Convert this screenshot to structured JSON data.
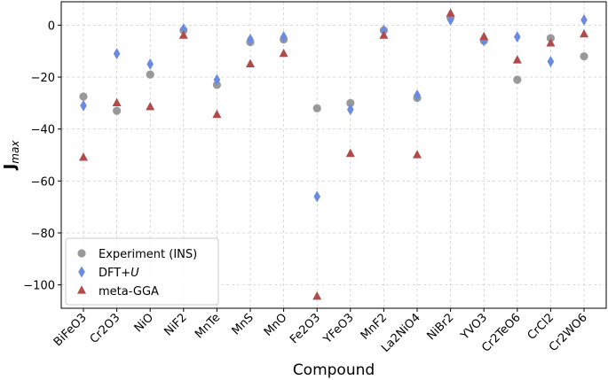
{
  "chart_data": {
    "type": "scatter",
    "title": "",
    "xlabel": "Compound",
    "ylabel_main": "J",
    "ylabel_sub": "max",
    "categories": [
      "BiFeO3",
      "Cr2O3",
      "NiO",
      "NiF2",
      "MnTe",
      "MnS",
      "MnO",
      "Fe2O3",
      "YFeO3",
      "MnF2",
      "La2NiO4",
      "NiBr2",
      "YVO3",
      "Cr2TeO6",
      "CrCl2",
      "Cr2WO6"
    ],
    "ylim": [
      -109,
      9
    ],
    "yticks": [
      0,
      -20,
      -40,
      -60,
      -80,
      -100
    ],
    "ytick_labels": [
      "0",
      "−20",
      "−40",
      "−60",
      "−80",
      "−100"
    ],
    "grid": true,
    "legend_position": "lower-left",
    "series": [
      {
        "name": "Experiment (INS)",
        "name_prefix": "Experiment (INS)",
        "name_italic": "",
        "marker": "circle",
        "color": "#999999",
        "values": [
          -27.5,
          -33,
          -19,
          -2,
          -23,
          -6.5,
          -5.5,
          -32,
          -30,
          -2,
          -28,
          3,
          -6,
          -21,
          -5,
          -12
        ]
      },
      {
        "name": "DFT+U",
        "name_prefix": "DFT+",
        "name_italic": "U",
        "marker": "diamond",
        "color": "#6b8be3",
        "values": [
          -31,
          -11,
          -15,
          -1.5,
          -21,
          -5.5,
          -4.5,
          -66,
          -32.5,
          -2,
          -27,
          2,
          -6,
          -4.5,
          -14,
          2
        ]
      },
      {
        "name": "meta-GGA",
        "name_prefix": "meta-GGA",
        "name_italic": "",
        "marker": "triangle",
        "color": "#b24a4a",
        "values": [
          -51,
          -30,
          -31.5,
          -4,
          -34.5,
          -15,
          -11,
          -104.5,
          -49.5,
          -4,
          -50,
          4.5,
          -4.5,
          -13.5,
          -7,
          -3.5
        ]
      }
    ]
  }
}
